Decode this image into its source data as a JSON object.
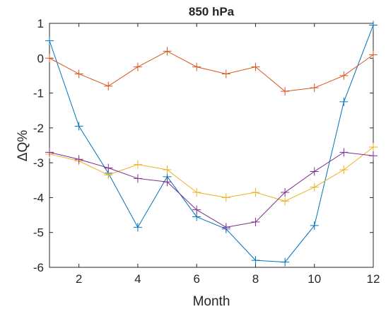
{
  "chart_data": {
    "type": "line",
    "title": "850 hPa",
    "x_label": "Month",
    "y_label": "ΔQ%",
    "x": [
      1,
      2,
      3,
      4,
      5,
      6,
      7,
      8,
      9,
      10,
      11,
      12
    ],
    "series": [
      {
        "color": "#0072bd",
        "values": [
          0.5,
          -1.95,
          -3.3,
          -4.85,
          -3.4,
          -4.55,
          -4.9,
          -5.8,
          -5.85,
          -4.8,
          -1.25,
          0.95
        ]
      },
      {
        "color": "#d95319",
        "values": [
          0.0,
          -0.45,
          -0.8,
          -0.25,
          0.2,
          -0.25,
          -0.45,
          -0.25,
          -0.95,
          -0.85,
          -0.5,
          0.1
        ]
      },
      {
        "color": "#edb120",
        "values": [
          -2.75,
          -2.95,
          -3.35,
          -3.05,
          -3.2,
          -3.85,
          -4.0,
          -3.85,
          -4.1,
          -3.7,
          -3.2,
          -2.55
        ]
      },
      {
        "color": "#7e2f8e",
        "values": [
          -2.7,
          -2.9,
          -3.15,
          -3.45,
          -3.55,
          -4.35,
          -4.85,
          -4.7,
          -3.85,
          -3.25,
          -2.7,
          -2.8
        ]
      }
    ],
    "xlim": [
      1,
      12
    ],
    "ylim": [
      -6,
      1
    ],
    "xticks": [
      2,
      4,
      6,
      8,
      10,
      12
    ],
    "yticks": [
      -6,
      -5,
      -4,
      -3,
      -2,
      -1,
      0,
      1
    ]
  }
}
